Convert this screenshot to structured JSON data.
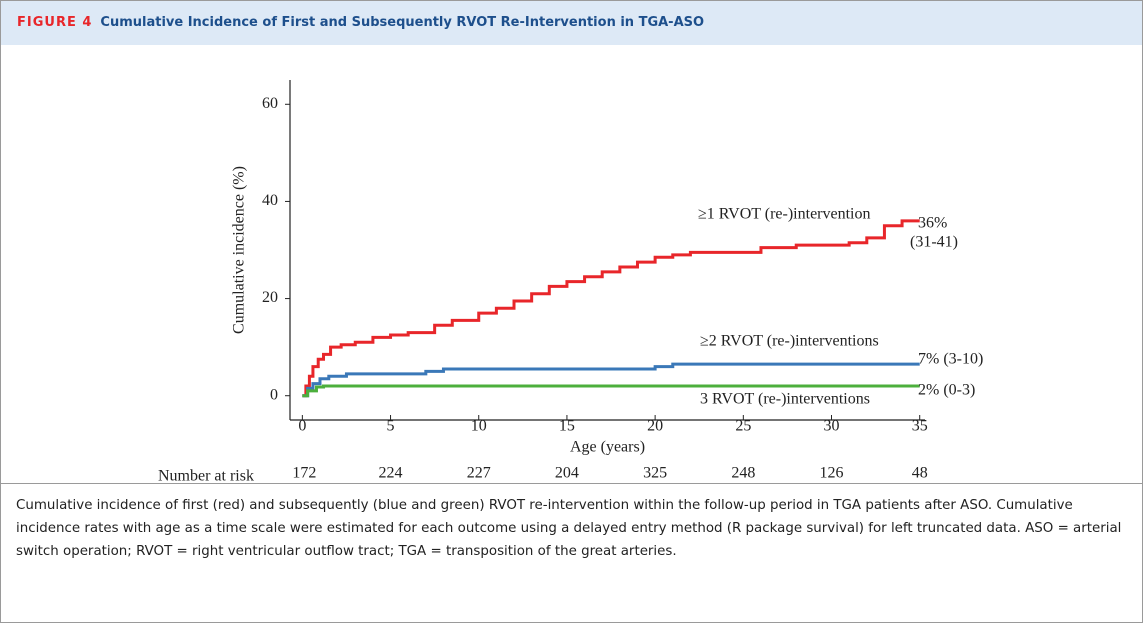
{
  "figure": {
    "label": "FIGURE 4",
    "title": "Cumulative Incidence of First and Subsequently RVOT Re-Intervention in TGA-ASO",
    "caption": "Cumulative incidence of first (red) and subsequently (blue and green) RVOT re-intervention within the follow-up period in TGA patients after ASO. Cumulative incidence rates with age as a time scale were estimated for each outcome using a delayed entry method (R package survival) for left truncated data. ASO = arterial switch operation; RVOT = right ventricular outflow tract; TGA = transposition of the great arteries."
  },
  "chart_data": {
    "type": "step",
    "xlabel": "Age (years)",
    "ylabel": "Cumulative incidence (%)",
    "xlim": [
      -0.7,
      35.3
    ],
    "ylim": [
      -5,
      65
    ],
    "xticks": [
      0,
      5,
      10,
      15,
      20,
      25,
      30,
      35
    ],
    "yticks": [
      0,
      20,
      40,
      60
    ],
    "series": [
      {
        "name": "≥1 RVOT (re-)intervention",
        "color": "#e8262a",
        "x": [
          0,
          0.2,
          0.4,
          0.6,
          0.9,
          1.2,
          1.6,
          2.2,
          3,
          4,
          5,
          6,
          7.5,
          8.5,
          10,
          11,
          12,
          13,
          14,
          15,
          16,
          17,
          18,
          19,
          20,
          21,
          22,
          26,
          28,
          31,
          32,
          33,
          34,
          35
        ],
        "values": [
          0,
          2,
          4,
          6,
          7.5,
          8.5,
          10,
          10.5,
          11,
          12,
          12.5,
          13,
          14.5,
          15.5,
          17,
          18,
          19.5,
          21,
          22.5,
          23.5,
          24.5,
          25.5,
          26.5,
          27.5,
          28.5,
          29,
          29.5,
          30.5,
          31,
          31.5,
          32.5,
          35,
          36,
          36
        ]
      },
      {
        "name": "≥2 RVOT (re-)interventions",
        "color": "#3a78b8",
        "x": [
          0,
          0.3,
          0.6,
          1,
          1.5,
          2.5,
          7,
          8,
          20,
          21,
          35
        ],
        "values": [
          0,
          1.5,
          2.5,
          3.5,
          4,
          4.5,
          5,
          5.5,
          6,
          6.5,
          6.5
        ]
      },
      {
        "name": "3 RVOT (re-)interventions",
        "color": "#4caf3c",
        "x": [
          0,
          0.3,
          0.8,
          1.2,
          35
        ],
        "values": [
          0,
          1,
          1.8,
          2,
          2
        ]
      }
    ],
    "annotations": [
      "36%",
      "(31-41)",
      "7% (3-10)",
      "2% (0-3)"
    ],
    "risk_table": {
      "label": "Number at risk",
      "values": [
        172,
        224,
        227,
        204,
        325,
        248,
        126,
        48
      ]
    }
  }
}
